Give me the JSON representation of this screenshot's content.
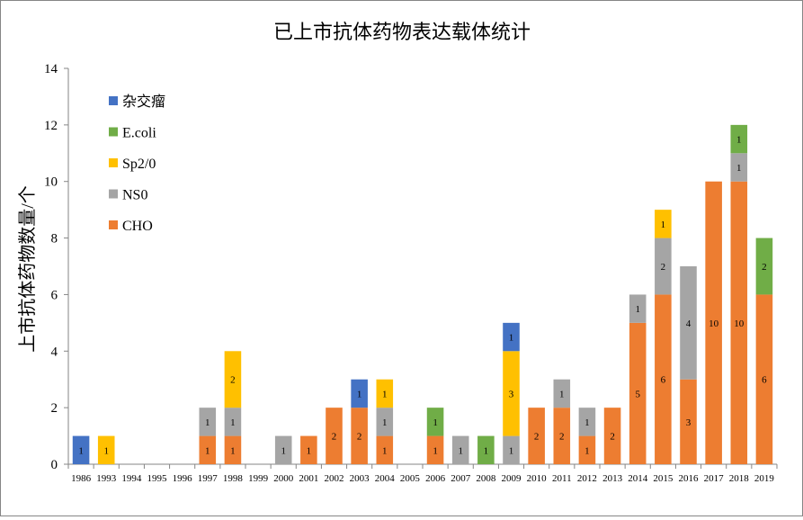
{
  "chart_data": {
    "type": "bar",
    "stacked": true,
    "title": "已上市抗体药物表达载体统计",
    "ylabel": "上市抗体药物数量/个",
    "xlabel": "",
    "ylim": [
      0,
      14
    ],
    "yticks": [
      0,
      2,
      4,
      6,
      8,
      10,
      12,
      14
    ],
    "grid": false,
    "legend_position": "top-left",
    "categories": [
      "1986",
      "1993",
      "1994",
      "1995",
      "1996",
      "1997",
      "1998",
      "1999",
      "2000",
      "2001",
      "2002",
      "2003",
      "2004",
      "2005",
      "2006",
      "2007",
      "2008",
      "2009",
      "2010",
      "2011",
      "2012",
      "2013",
      "2014",
      "2015",
      "2016",
      "2017",
      "2018",
      "2019"
    ],
    "series": [
      {
        "name": "CHO",
        "color": "#ED7D31",
        "values": [
          0,
          0,
          0,
          0,
          0,
          1,
          1,
          0,
          0,
          1,
          2,
          2,
          1,
          0,
          1,
          0,
          0,
          0,
          2,
          2,
          1,
          2,
          5,
          6,
          3,
          10,
          10,
          6
        ]
      },
      {
        "name": "NS0",
        "color": "#A5A5A5",
        "values": [
          0,
          0,
          0,
          0,
          0,
          1,
          1,
          0,
          1,
          0,
          0,
          0,
          1,
          0,
          0,
          1,
          0,
          1,
          0,
          1,
          1,
          0,
          1,
          2,
          4,
          0,
          1,
          0
        ]
      },
      {
        "name": "Sp2/0",
        "color": "#FFC000",
        "values": [
          0,
          1,
          0,
          0,
          0,
          0,
          2,
          0,
          0,
          0,
          0,
          0,
          1,
          0,
          0,
          0,
          0,
          3,
          0,
          0,
          0,
          0,
          0,
          1,
          0,
          0,
          0,
          0
        ]
      },
      {
        "name": "E.coli",
        "color": "#70AD47",
        "values": [
          0,
          0,
          0,
          0,
          0,
          0,
          0,
          0,
          0,
          0,
          0,
          0,
          0,
          0,
          1,
          0,
          1,
          0,
          0,
          0,
          0,
          0,
          0,
          0,
          0,
          0,
          1,
          2
        ]
      },
      {
        "name": "杂交瘤",
        "color": "#4472C4",
        "values": [
          1,
          0,
          0,
          0,
          0,
          0,
          0,
          0,
          0,
          0,
          0,
          1,
          0,
          0,
          0,
          0,
          0,
          1,
          0,
          0,
          0,
          0,
          0,
          0,
          0,
          0,
          0,
          0
        ]
      }
    ],
    "legend_order": [
      "杂交瘤",
      "E.coli",
      "Sp2/0",
      "NS0",
      "CHO"
    ]
  }
}
